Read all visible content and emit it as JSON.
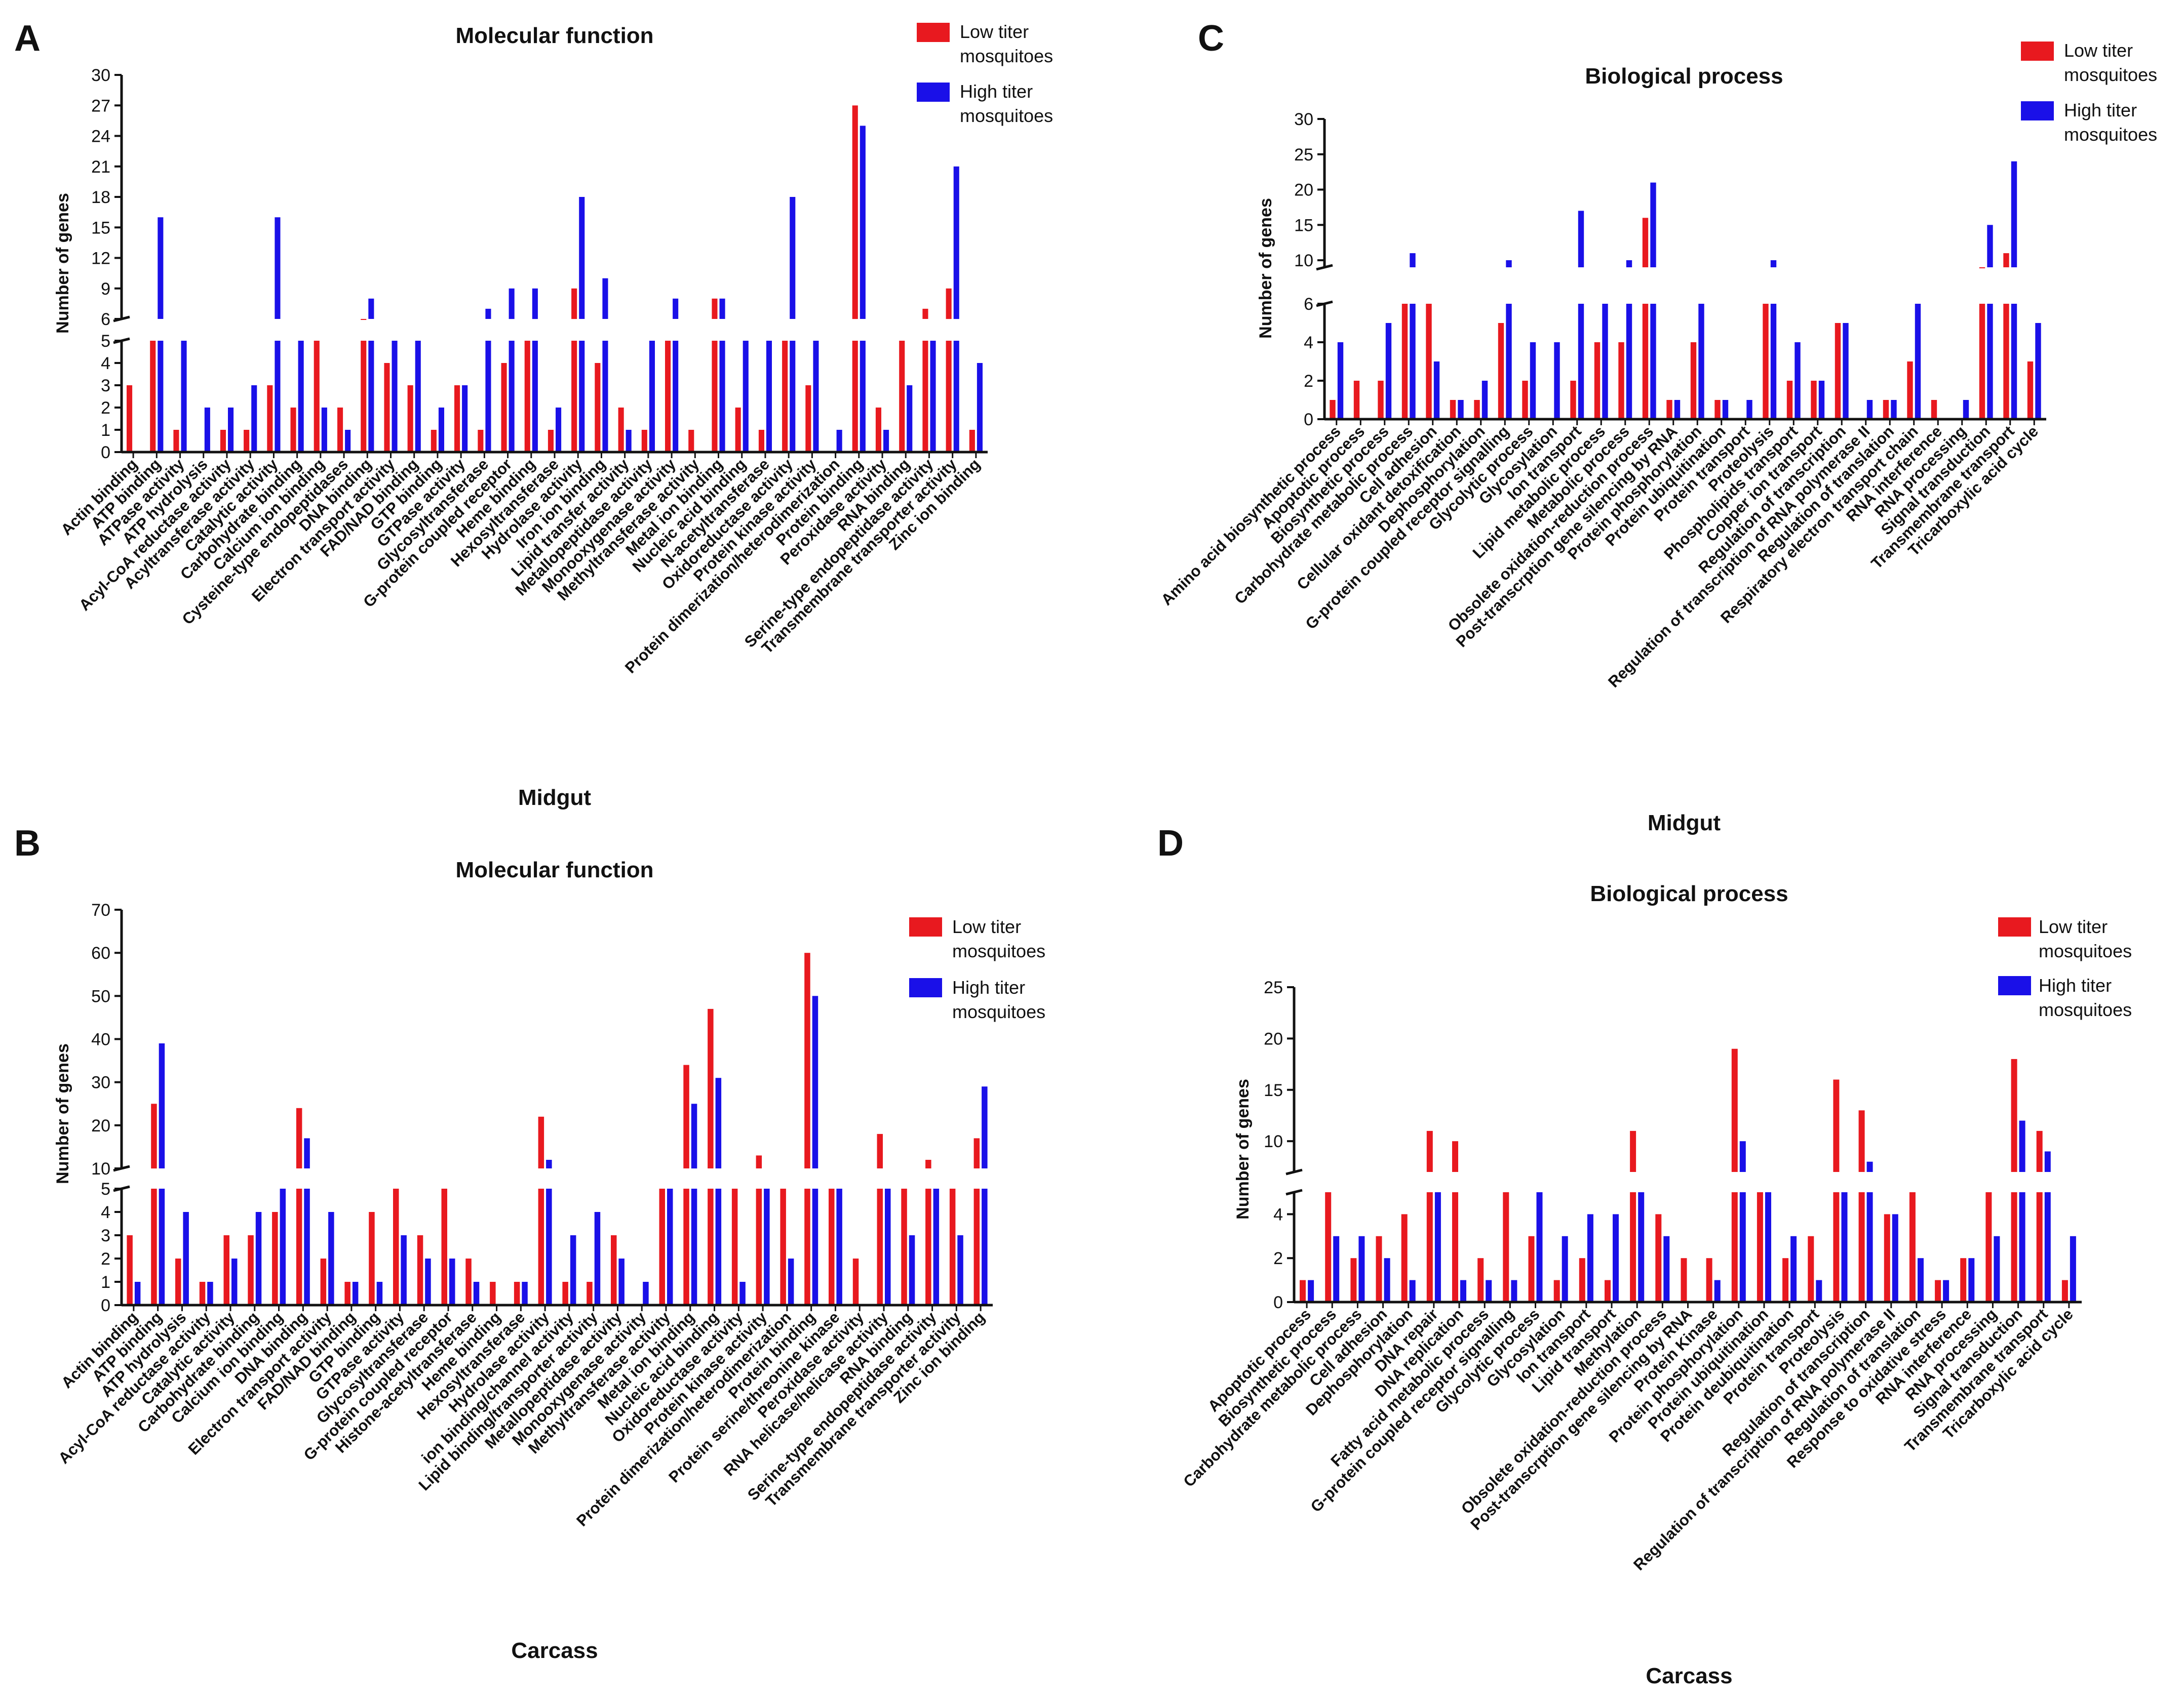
{
  "colors": {
    "low": "#e8191f",
    "high": "#1a10e8",
    "axis": "#111111"
  },
  "legend": {
    "low": "Low titer mosquitoes",
    "high": "High titer mosquitoes"
  },
  "chart_data": [
    {
      "panel": "A",
      "type": "bar",
      "title": "Molecular function",
      "tissue": "Midgut",
      "xlabel": "Midgut",
      "ylabel": "Number of genes",
      "broken_axis": {
        "lower": [
          0,
          5
        ],
        "upper": [
          6,
          30
        ]
      },
      "lower_ticks": [
        0,
        1,
        2,
        3,
        4,
        5
      ],
      "upper_ticks": [
        6,
        9,
        12,
        15,
        18,
        21,
        24,
        27,
        30
      ],
      "categories": [
        "Actin binding",
        "ATP binding",
        "ATPase activity",
        "ATP hydrolysis",
        "Acyl-CoA reductase activity",
        "Acyltransferase activity",
        "Catalytic activity",
        "Carbohydrate binding",
        "Calcium ion binding",
        "Cysteine-type endopeptidases",
        "DNA binding",
        "Electron transport activity",
        "FAD/NAD binding",
        "GTP binding",
        "GTPase activity",
        "Glycosyltransferase",
        "G-protein coupled receptor",
        "Heme binding",
        "Hexosyltransferase",
        "Hydrolase activity",
        "Iron ion binding",
        "Lipid transfer activity",
        "Metallopeptidase activity",
        "Monooxygenase activity",
        "Methyltransferase activity",
        "Metal ion binding",
        "Nucleic acid binding",
        "N-acetyltransferase",
        "Oxidoreductase activity",
        "Protein kinase activity",
        "Protein dimerization/heterodimerization",
        "Protein binding",
        "Peroxidase activity",
        "RNA binding",
        "Serine-type endopeptidase activity",
        "Transmembrane transporter activity",
        "Zinc ion binding"
      ],
      "series": [
        {
          "name": "Low titer mosquitoes",
          "values": [
            3,
            5,
            1,
            0,
            1,
            1,
            3,
            2,
            5,
            2,
            6,
            4,
            3,
            1,
            3,
            1,
            4,
            5,
            1,
            9,
            4,
            2,
            1,
            5,
            1,
            8,
            2,
            1,
            5,
            3,
            0,
            27,
            2,
            5,
            7,
            9,
            1
          ]
        },
        {
          "name": "High titer mosquitoes",
          "values": [
            0,
            16,
            5,
            2,
            2,
            3,
            16,
            5,
            2,
            1,
            8,
            5,
            5,
            2,
            3,
            7,
            9,
            9,
            2,
            18,
            10,
            1,
            5,
            8,
            0,
            8,
            5,
            5,
            18,
            5,
            1,
            25,
            1,
            3,
            5,
            21,
            4
          ]
        }
      ]
    },
    {
      "panel": "B",
      "type": "bar",
      "title": "Molecular function",
      "tissue": "Carcass",
      "xlabel": "Carcass",
      "ylabel": "Number of genes",
      "broken_axis": {
        "lower": [
          0,
          5
        ],
        "upper": [
          10,
          70
        ]
      },
      "lower_ticks": [
        0,
        1,
        2,
        3,
        4,
        5
      ],
      "upper_ticks": [
        10,
        20,
        30,
        40,
        50,
        60,
        70
      ],
      "categories": [
        "Actin binding",
        "ATP binding",
        "ATP hydrolysis",
        "Acyl-CoA reductase activity",
        "Catalytic activity",
        "Carbohydrate binding",
        "Calcium ion binding",
        "DNA binding",
        "Electron transport activity",
        "FAD/NAD binding",
        "GTP binding",
        "GTPase activity",
        "Glycosyltransferase",
        "G-protein coupled receptor",
        "Histone-acetyltransferase",
        "Heme binding",
        "Hexosyltransferase",
        "Hydrolase activity",
        "ion binding/channel activity",
        "Lipid binding/transporter activity",
        "Metallopeptidase activity",
        "Monooxygenase activity",
        "Methyltransferase activity",
        "Metal ion binding",
        "Nucleic acid binding",
        "Oxidoreductase activity",
        "Protein kinase activity",
        "Protein dimerization/heterodimerization",
        "Protein binding",
        "Protein serine/threonine kinase",
        "Peroxidase activity",
        "RNA helicase/helicase activity",
        "RNA binding",
        "Serine-type endopeptidase activity",
        "Transmembrane transporter activity",
        "Zinc ion binding"
      ],
      "series": [
        {
          "name": "Low titer mosquitoes",
          "values": [
            3,
            25,
            2,
            1,
            3,
            3,
            4,
            24,
            2,
            1,
            4,
            5,
            3,
            5,
            2,
            1,
            1,
            22,
            1,
            1,
            3,
            0,
            5,
            34,
            47,
            5,
            13,
            5,
            60,
            5,
            2,
            18,
            5,
            12,
            5,
            17
          ]
        },
        {
          "name": "High titer mosquitoes",
          "values": [
            1,
            39,
            4,
            1,
            2,
            4,
            5,
            17,
            4,
            1,
            1,
            3,
            2,
            2,
            1,
            0,
            1,
            12,
            3,
            4,
            2,
            1,
            5,
            25,
            31,
            1,
            5,
            2,
            50,
            5,
            0,
            5,
            3,
            5,
            3,
            29
          ]
        }
      ]
    },
    {
      "panel": "C",
      "type": "bar",
      "title": "Biological process",
      "tissue": "Midgut",
      "xlabel": "Midgut",
      "ylabel": "Number of genes",
      "broken_axis": {
        "lower": [
          0,
          6
        ],
        "upper": [
          9,
          30
        ]
      },
      "lower_ticks": [
        0,
        2,
        4,
        6
      ],
      "upper_ticks": [
        10,
        15,
        20,
        25,
        30
      ],
      "categories": [
        "Amino acid biosynthetic process",
        "Apoptotic process",
        "Biosynthetic process",
        "Carbohydrate metabolic process",
        "Cell adhesion",
        "Cellular oxidant detoxification",
        "Dephosphorylation",
        "G-protein coupled receptor signalling",
        "Glycolytic process",
        "Glycosylation",
        "Ion transport",
        "Lipid metabolic process",
        "Metabolic process",
        "Obsolete oxidation-reduction process",
        "Post-transcrption gene silencing by RNA",
        "Protein phosphorylation",
        "Protein ubiquitination",
        "Protein transport",
        "Proteolysis",
        "Phospholipids transport",
        "Copper ion transport",
        "Regulation of transcription",
        "Regulation of transcription of RNA polymerase II",
        "Regulation of translation",
        "Respiratory electron transport chain",
        "RNA interference",
        "RNA processing",
        "Signal transduction",
        "Transmembrane transport",
        "Tricarboxylic acid cycle"
      ],
      "series": [
        {
          "name": "Low titer mosquitoes",
          "values": [
            1,
            2,
            2,
            6,
            6,
            1,
            1,
            5,
            2,
            0,
            2,
            4,
            4,
            16,
            1,
            4,
            1,
            0,
            6,
            2,
            2,
            5,
            0,
            1,
            3,
            1,
            0,
            9,
            11,
            3
          ]
        },
        {
          "name": "High titer mosquitoes",
          "values": [
            4,
            0,
            5,
            11,
            3,
            1,
            2,
            10,
            4,
            4,
            17,
            6,
            10,
            21,
            1,
            6,
            1,
            1,
            10,
            4,
            2,
            5,
            1,
            1,
            6,
            0,
            1,
            15,
            24,
            5
          ]
        }
      ]
    },
    {
      "panel": "D",
      "type": "bar",
      "title": "Biological process",
      "tissue": "Carcass",
      "xlabel": "Carcass",
      "ylabel": "Number of genes",
      "broken_axis": {
        "lower": [
          0,
          5
        ],
        "upper": [
          7,
          25
        ]
      },
      "lower_ticks": [
        0,
        2,
        4
      ],
      "upper_ticks": [
        10,
        15,
        20,
        25
      ],
      "categories": [
        "Apoptotic process",
        "Biosynthetic process",
        "Carbohydrate metabolic process",
        "Cell adhesion",
        "Dephosphorylation",
        "DNA repair",
        "DNA replication",
        "Fatty acid metabolic process",
        "G-protein coupled receptor signalling",
        "Glycolytic process",
        "Glycosylation",
        "Ion transport",
        "Lipid transport",
        "Methylation",
        "Obsolete oxidation-reduction process",
        "Post-transcrption gene silencing by RNA",
        "Protein Kinase",
        "Protein phosphorylation",
        "Protein ubiquitination",
        "Protein deubiquitination",
        "Protein transport",
        "Proteolysis",
        "Regulation of transcription",
        "Regulation of transcription of RNA polymerase II",
        "Regulation of translation",
        "Response to oxidative stress",
        "RNA interference",
        "RNA processing",
        "Signal transduction",
        "Transmembrane transport",
        "Tricarboxylic acid cycle"
      ],
      "series": [
        {
          "name": "Low titer mosquitoes",
          "values": [
            1,
            5,
            2,
            3,
            4,
            11,
            10,
            2,
            5,
            3,
            1,
            2,
            1,
            11,
            4,
            2,
            2,
            19,
            5,
            2,
            3,
            16,
            13,
            4,
            5,
            1,
            2,
            5,
            18,
            11,
            1
          ]
        },
        {
          "name": "High titer mosquitoes",
          "values": [
            1,
            3,
            3,
            2,
            1,
            5,
            1,
            1,
            1,
            5,
            3,
            4,
            4,
            5,
            3,
            0,
            1,
            10,
            5,
            3,
            1,
            5,
            8,
            4,
            2,
            1,
            2,
            3,
            12,
            9,
            3
          ]
        }
      ]
    }
  ]
}
